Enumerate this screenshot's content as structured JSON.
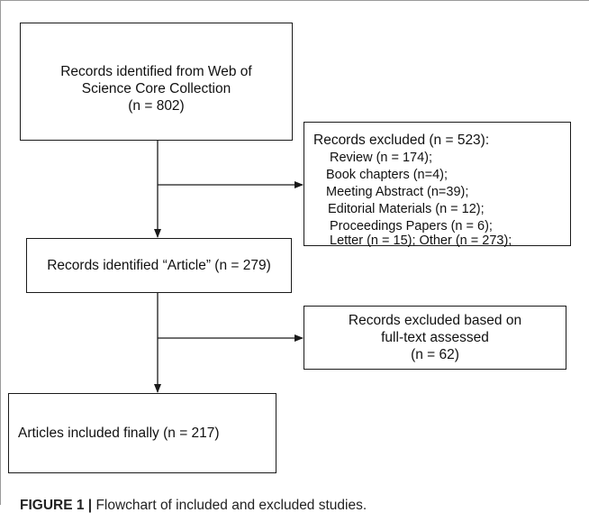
{
  "boxes": {
    "records_identified": {
      "lines": [
        "Records identified from Web of",
        "Science Core Collection",
        "(n = 802)"
      ]
    },
    "records_excluded": {
      "header": "Records excluded (n = 523):",
      "items": [
        "Review (n = 174);",
        "Book chapters (n=4);",
        "Meeting Abstract (n=39);",
        "Editorial Materials (n = 12);",
        "Proceedings Papers (n = 6);",
        "Letter (n = 15); Other (n = 273);"
      ]
    },
    "records_article": {
      "text": "Records identified “Article” (n = 279)"
    },
    "records_excluded_fulltext": {
      "lines": [
        "Records excluded based on",
        "full-text assessed",
        "(n = 62)"
      ]
    },
    "articles_included": {
      "text": "Articles included finally (n = 217)"
    }
  },
  "caption": {
    "label": "FIGURE 1 |",
    "text": " Flowchart of included and excluded studies."
  }
}
